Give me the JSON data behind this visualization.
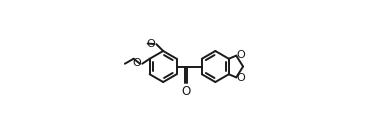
{
  "bg_color": "#ffffff",
  "line_color": "#1a1a1a",
  "lw": 1.4,
  "fig_width": 3.81,
  "fig_height": 1.38,
  "dpi": 100,
  "xlim": [
    -0.05,
    1.05
  ],
  "ylim": [
    -0.05,
    1.05
  ]
}
